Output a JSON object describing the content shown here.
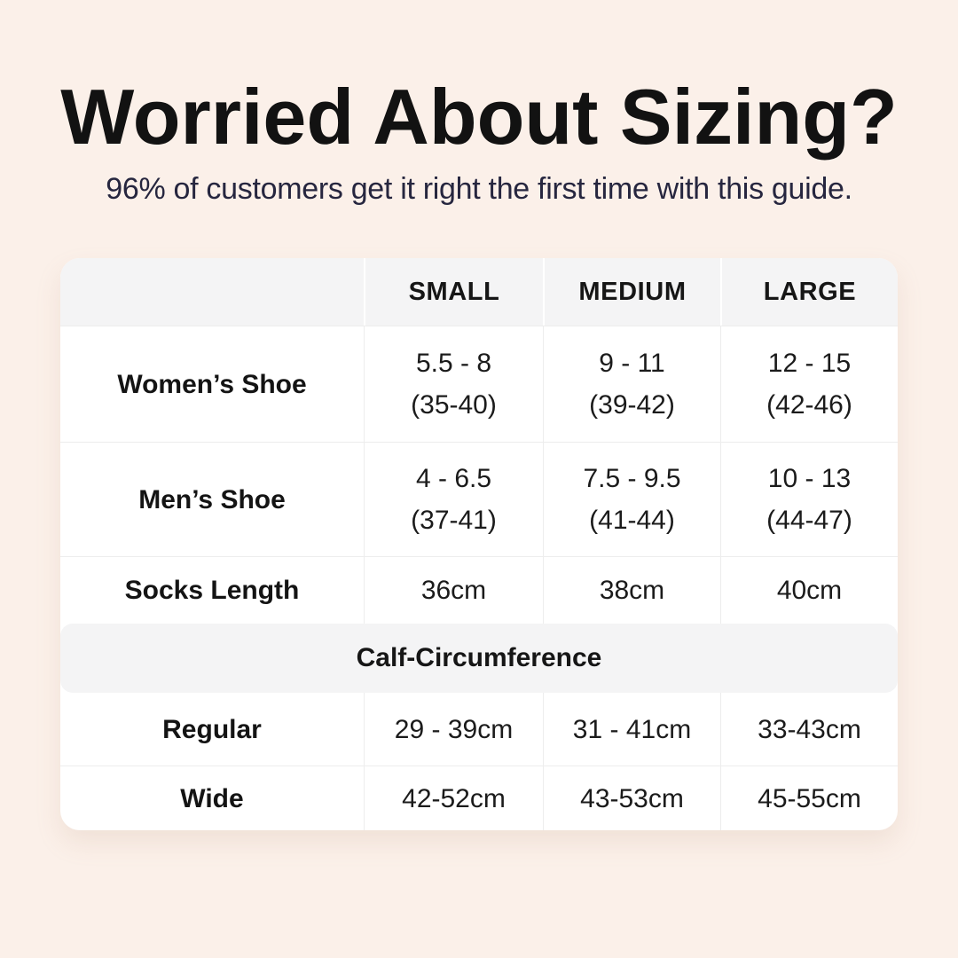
{
  "page": {
    "title": "Worried About Sizing?",
    "subtitle": "96% of customers get it right the first time with this guide.",
    "background_color": "#FBF0E9",
    "title_color": "#121212",
    "subtitle_color": "#26263F",
    "table_band_color": "#F4F4F5",
    "table_border_color": "#EDEDED"
  },
  "table": {
    "columns": [
      "",
      "SMALL",
      "MEDIUM",
      "LARGE"
    ],
    "rows": [
      {
        "label": "Women’s Shoe",
        "values": [
          [
            "5.5 - 8",
            "(35-40)"
          ],
          [
            "9 - 11",
            "(39-42)"
          ],
          [
            "12 - 15",
            "(42-46)"
          ]
        ]
      },
      {
        "label": "Men’s Shoe",
        "values": [
          [
            "4 - 6.5",
            "(37-41)"
          ],
          [
            "7.5 - 9.5",
            "(41-44)"
          ],
          [
            "10 - 13",
            "(44-47)"
          ]
        ]
      },
      {
        "label": "Socks Length",
        "values": [
          [
            "36cm"
          ],
          [
            "38cm"
          ],
          [
            "40cm"
          ]
        ]
      }
    ],
    "section_header": "Calf-Circumference",
    "section_rows": [
      {
        "label": "Regular",
        "values": [
          "29 - 39cm",
          "31 - 41cm",
          "33-43cm"
        ]
      },
      {
        "label": "Wide",
        "values": [
          "42-52cm",
          "43-53cm",
          "45-55cm"
        ]
      }
    ]
  },
  "chart_data": {
    "type": "table",
    "title": "Worried About Sizing?",
    "subtitle": "96% of customers get it right the first time with this guide.",
    "columns": [
      "",
      "SMALL",
      "MEDIUM",
      "LARGE"
    ],
    "rows": [
      [
        "Women’s Shoe",
        "5.5 - 8 (35-40)",
        "9 - 11 (39-42)",
        "12 - 15 (42-46)"
      ],
      [
        "Men’s Shoe",
        "4 - 6.5 (37-41)",
        "7.5 - 9.5 (41-44)",
        "10 - 13 (44-47)"
      ],
      [
        "Socks Length",
        "36cm",
        "38cm",
        "40cm"
      ],
      [
        "Calf-Circumference",
        "",
        "",
        ""
      ],
      [
        "Regular",
        "29 - 39cm",
        "31 - 41cm",
        "33-43cm"
      ],
      [
        "Wide",
        "42-52cm",
        "43-53cm",
        "45-55cm"
      ]
    ]
  }
}
